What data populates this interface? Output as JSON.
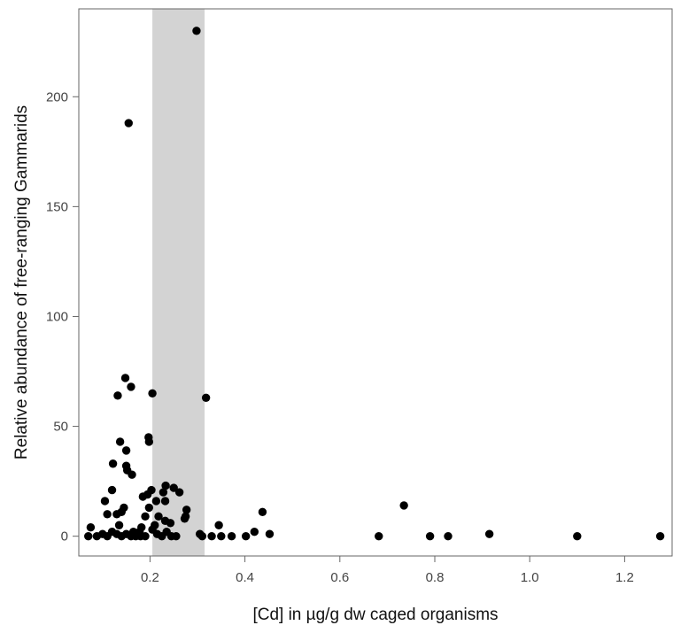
{
  "chart_data": {
    "type": "scatter",
    "title": "",
    "xlabel": "[Cd] in µg/g dw caged organisms",
    "ylabel": "Relative abundance of free-ranging Gammarids",
    "xlim": [
      0.05,
      1.3
    ],
    "ylim": [
      -9,
      240
    ],
    "x_ticks": [
      0.2,
      0.4,
      0.6,
      0.8,
      1.0,
      1.2
    ],
    "x_tick_labels": [
      "0.2",
      "0.4",
      "0.6",
      "0.8",
      "1.0",
      "1.2"
    ],
    "y_ticks": [
      0,
      50,
      100,
      150,
      200
    ],
    "y_tick_labels": [
      "0",
      "50",
      "100",
      "150",
      "200"
    ],
    "grid": false,
    "legend": "none",
    "shaded_band": {
      "x_from": 0.205,
      "x_to": 0.315,
      "color": "#d3d3d3"
    },
    "point_color": "#000000",
    "series": [
      {
        "points": [
          [
            0.298,
            230
          ],
          [
            0.155,
            188
          ],
          [
            0.148,
            72
          ],
          [
            0.16,
            68
          ],
          [
            0.132,
            64
          ],
          [
            0.205,
            65
          ],
          [
            0.318,
            63
          ],
          [
            0.197,
            45
          ],
          [
            0.198,
            43
          ],
          [
            0.137,
            43
          ],
          [
            0.15,
            39
          ],
          [
            0.15,
            32
          ],
          [
            0.152,
            30
          ],
          [
            0.162,
            28
          ],
          [
            0.122,
            33
          ],
          [
            0.233,
            23
          ],
          [
            0.25,
            22
          ],
          [
            0.262,
            20
          ],
          [
            0.228,
            20
          ],
          [
            0.203,
            21
          ],
          [
            0.195,
            19
          ],
          [
            0.185,
            18
          ],
          [
            0.213,
            16
          ],
          [
            0.232,
            16
          ],
          [
            0.105,
            16
          ],
          [
            0.12,
            21
          ],
          [
            0.145,
            13
          ],
          [
            0.14,
            11
          ],
          [
            0.13,
            10
          ],
          [
            0.11,
            10
          ],
          [
            0.198,
            13
          ],
          [
            0.277,
            12
          ],
          [
            0.275,
            9
          ],
          [
            0.273,
            8
          ],
          [
            0.19,
            9
          ],
          [
            0.218,
            9
          ],
          [
            0.232,
            7
          ],
          [
            0.243,
            6
          ],
          [
            0.21,
            5
          ],
          [
            0.205,
            3
          ],
          [
            0.182,
            4
          ],
          [
            0.178,
            2
          ],
          [
            0.075,
            4
          ],
          [
            0.07,
            0
          ],
          [
            0.088,
            0
          ],
          [
            0.1,
            1
          ],
          [
            0.11,
            0
          ],
          [
            0.12,
            2
          ],
          [
            0.13,
            1
          ],
          [
            0.135,
            5
          ],
          [
            0.14,
            0
          ],
          [
            0.15,
            1
          ],
          [
            0.16,
            0
          ],
          [
            0.165,
            2
          ],
          [
            0.17,
            0
          ],
          [
            0.175,
            1
          ],
          [
            0.18,
            0
          ],
          [
            0.19,
            0
          ],
          [
            0.215,
            1
          ],
          [
            0.225,
            0
          ],
          [
            0.235,
            2
          ],
          [
            0.245,
            0
          ],
          [
            0.255,
            0
          ],
          [
            0.305,
            1
          ],
          [
            0.31,
            0
          ],
          [
            0.33,
            0
          ],
          [
            0.345,
            5
          ],
          [
            0.35,
            0
          ],
          [
            0.372,
            0
          ],
          [
            0.402,
            0
          ],
          [
            0.42,
            2
          ],
          [
            0.437,
            11
          ],
          [
            0.452,
            1
          ],
          [
            0.682,
            0
          ],
          [
            0.735,
            14
          ],
          [
            0.79,
            0
          ],
          [
            0.828,
            0
          ],
          [
            0.915,
            1
          ],
          [
            1.1,
            0
          ],
          [
            1.275,
            0
          ]
        ]
      }
    ]
  }
}
